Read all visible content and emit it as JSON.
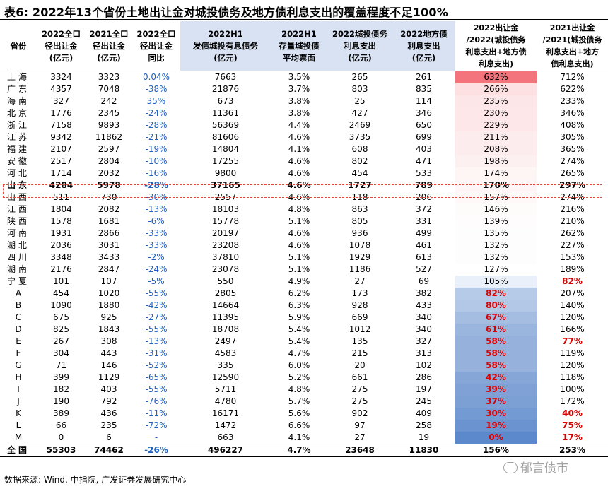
{
  "title": "表6:  2022年13个省份土地出让金对城投债务及地方债利息支出的覆盖程度不足100%",
  "source": "数据来源:  Wind, 中指院, 广发证券发展研究中心",
  "watermark": "郁言债市",
  "headers": [
    "省份",
    "2022全口径出让金(亿元)",
    "2021全口径出让金(亿元)",
    "2022全口径同比",
    "2022H1发债城投有息债务(亿元)",
    "2022H1存量城投债平均票面",
    "2022城投债务利息支出(亿元)",
    "2022地方债利息支出(亿元)",
    "2022出让金/2022(城投债务利息支出+地方债利息支出)",
    "2021出让金/2021(城投债务利息支出+地方债利息支出)"
  ],
  "rows": [
    [
      "上海",
      "3324",
      "3323",
      "0.04%",
      "7663",
      "3.5%",
      "265",
      "261",
      "632%",
      "712%"
    ],
    [
      "广东",
      "4357",
      "7048",
      "-38%",
      "21876",
      "3.7%",
      "803",
      "835",
      "266%",
      "622%"
    ],
    [
      "海南",
      "327",
      "242",
      "35%",
      "673",
      "3.8%",
      "25",
      "114",
      "235%",
      "233%"
    ],
    [
      "北京",
      "1776",
      "2345",
      "-24%",
      "11361",
      "3.8%",
      "427",
      "346",
      "230%",
      "346%"
    ],
    [
      "浙江",
      "7158",
      "9893",
      "-28%",
      "56369",
      "4.4%",
      "2469",
      "650",
      "229%",
      "408%"
    ],
    [
      "江苏",
      "9342",
      "11862",
      "-21%",
      "81606",
      "4.6%",
      "3735",
      "699",
      "211%",
      "305%"
    ],
    [
      "福建",
      "2107",
      "2597",
      "-19%",
      "14804",
      "4.1%",
      "608",
      "403",
      "208%",
      "365%"
    ],
    [
      "安徽",
      "2517",
      "2804",
      "-10%",
      "17255",
      "4.6%",
      "802",
      "471",
      "198%",
      "274%"
    ],
    [
      "河北",
      "1714",
      "2032",
      "-16%",
      "9800",
      "4.6%",
      "454",
      "533",
      "174%",
      "265%"
    ],
    [
      "山东",
      "4284",
      "5978",
      "-28%",
      "37165",
      "4.6%",
      "1727",
      "789",
      "170%",
      "297%"
    ],
    [
      "山西",
      "511",
      "730",
      "-30%",
      "2557",
      "4.6%",
      "118",
      "206",
      "157%",
      "274%"
    ],
    [
      "江西",
      "1804",
      "2082",
      "-13%",
      "18103",
      "4.8%",
      "863",
      "372",
      "146%",
      "216%"
    ],
    [
      "陕西",
      "1578",
      "1681",
      "-6%",
      "15778",
      "5.1%",
      "805",
      "331",
      "139%",
      "210%"
    ],
    [
      "河南",
      "1931",
      "2866",
      "-33%",
      "20197",
      "4.6%",
      "936",
      "499",
      "135%",
      "262%"
    ],
    [
      "湖北",
      "2036",
      "3031",
      "-33%",
      "23208",
      "4.6%",
      "1078",
      "461",
      "132%",
      "227%"
    ],
    [
      "四川",
      "3348",
      "3433",
      "-2%",
      "37810",
      "5.1%",
      "1929",
      "613",
      "132%",
      "153%"
    ],
    [
      "湖南",
      "2176",
      "2847",
      "-24%",
      "23078",
      "5.1%",
      "1186",
      "527",
      "127%",
      "189%"
    ],
    [
      "宁夏",
      "101",
      "107",
      "-5%",
      "550",
      "4.9%",
      "27",
      "69",
      "105%",
      "82%"
    ],
    [
      "A",
      "454",
      "1020",
      "-55%",
      "2805",
      "6.2%",
      "173",
      "382",
      "82%",
      "207%"
    ],
    [
      "B",
      "1090",
      "1880",
      "-42%",
      "14664",
      "6.3%",
      "928",
      "433",
      "80%",
      "140%"
    ],
    [
      "C",
      "675",
      "925",
      "-27%",
      "11395",
      "5.9%",
      "669",
      "340",
      "67%",
      "120%"
    ],
    [
      "D",
      "825",
      "1843",
      "-55%",
      "18708",
      "5.4%",
      "1012",
      "340",
      "61%",
      "166%"
    ],
    [
      "E",
      "267",
      "308",
      "-13%",
      "2497",
      "5.4%",
      "135",
      "327",
      "58%",
      "77%"
    ],
    [
      "F",
      "304",
      "443",
      "-31%",
      "4583",
      "4.7%",
      "215",
      "313",
      "58%",
      "119%"
    ],
    [
      "G",
      "71",
      "146",
      "-52%",
      "335",
      "6.0%",
      "20",
      "102",
      "58%",
      "120%"
    ],
    [
      "H",
      "399",
      "1129",
      "-65%",
      "12590",
      "5.2%",
      "661",
      "286",
      "42%",
      "118%"
    ],
    [
      "I",
      "182",
      "403",
      "-55%",
      "5711",
      "4.8%",
      "275",
      "197",
      "39%",
      "100%"
    ],
    [
      "J",
      "190",
      "792",
      "-76%",
      "4780",
      "5.7%",
      "275",
      "245",
      "37%",
      "172%"
    ],
    [
      "K",
      "389",
      "436",
      "-11%",
      "16171",
      "5.6%",
      "902",
      "409",
      "30%",
      "40%"
    ],
    [
      "L",
      "66",
      "235",
      "-72%",
      "1472",
      "6.6%",
      "97",
      "258",
      "19%",
      "75%"
    ],
    [
      "M",
      "0",
      "6",
      "-",
      "663",
      "4.1%",
      "27",
      "19",
      "0%",
      "17%"
    ],
    [
      "全国",
      "55303",
      "74462",
      "-26%",
      "496227",
      "4.7%",
      "23648",
      "11830",
      "156%",
      "253%"
    ]
  ],
  "cell_colors": {
    "col8": [
      "#f4747e",
      "#fde0e2",
      "#fde6e7",
      "#fde7e8",
      "#fde7e8",
      "#fdeced",
      "#fdeced",
      "#fdf0f1",
      "#fef5f5",
      "#fef6f6",
      "#fef8f8",
      "#fefbfb",
      "#fefcfc",
      "#fefdfd",
      "#fefdfd",
      "#fefdfd",
      "#ffffff",
      "#eaf0f9",
      "#b6cbe7",
      "#b3c8e6",
      "#a4bde1",
      "#9bb6de",
      "#95b1dc",
      "#95b1dc",
      "#95b1dc",
      "#86a6d7",
      "#7fa1d5",
      "#7c9fd4",
      "#739ad2",
      "#6b93cf",
      "#5c89cb",
      "#ffffff"
    ],
    "col9": [
      "#ffffff",
      "#ffffff",
      "#ffffff",
      "#ffffff",
      "#ffffff",
      "#ffffff",
      "#ffffff",
      "#ffffff",
      "#ffffff",
      "#ffffff",
      "#ffffff",
      "#ffffff",
      "#ffffff",
      "#ffffff",
      "#ffffff",
      "#ffffff",
      "#ffffff",
      "#ffffff",
      "#ffffff",
      "#ffffff",
      "#ffffff",
      "#ffffff",
      "#ffffff",
      "#ffffff",
      "#ffffff",
      "#ffffff",
      "#ffffff",
      "#ffffff",
      "#ffffff",
      "#ffffff",
      "#ffffff",
      "#ffffff"
    ]
  },
  "colors": {
    "negative_text": "#1f5fbf",
    "under_100_text": "#d00",
    "header_shade": "#d8e2f3",
    "highlight_box": "#e8463c"
  }
}
